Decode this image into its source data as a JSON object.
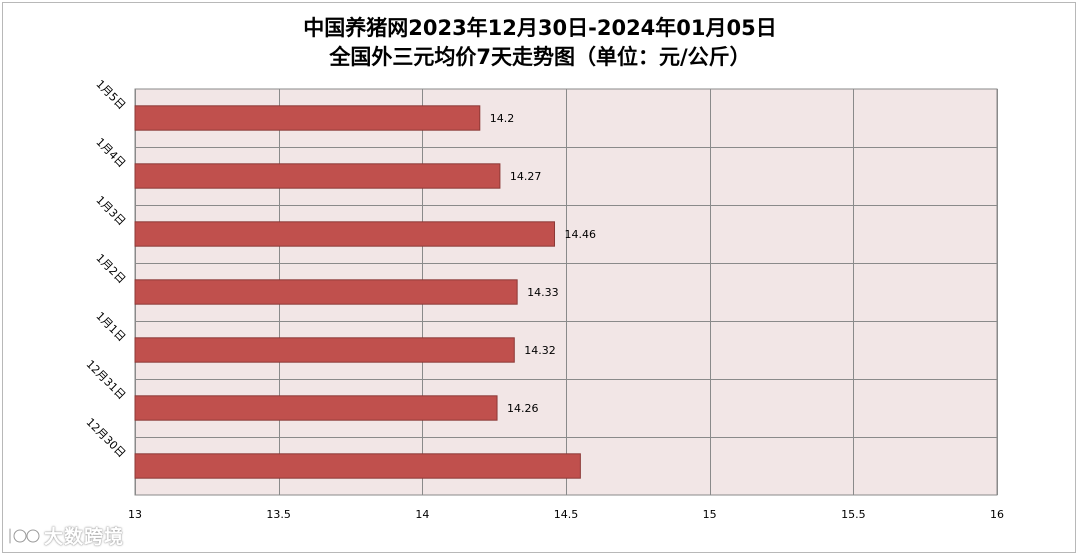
{
  "chart_data": {
    "type": "bar",
    "orientation": "horizontal",
    "title": "中国养猪网2023年12月30日-2024年01月05日",
    "subtitle": "全国外三元均价7天走势图（单位：元/公斤）",
    "categories": [
      "1月5日",
      "1月4日",
      "1月3日",
      "1月2日",
      "1月1日",
      "12月31日",
      "12月30日"
    ],
    "values": [
      14.2,
      14.27,
      14.46,
      14.33,
      14.32,
      14.26,
      14.55
    ],
    "data_labels": [
      "14.2",
      "14.27",
      "14.46",
      "14.33",
      "14.32",
      "14.26",
      ""
    ],
    "xlim": [
      13,
      16
    ],
    "xticks": [
      "13",
      "13.5",
      "14",
      "14.5",
      "15",
      "15.5",
      "16"
    ],
    "xtick_values": [
      13,
      13.5,
      14,
      14.5,
      15,
      15.5,
      16
    ],
    "grid": true,
    "legend": "none",
    "colors": {
      "bar_fill": "#c0504d",
      "bar_stroke": "#8c3836",
      "plot_background": "#f2e6e6",
      "grid": "#8a8a8a"
    }
  },
  "watermark": {
    "text": "大数跨境",
    "icon": "logo-icon"
  }
}
